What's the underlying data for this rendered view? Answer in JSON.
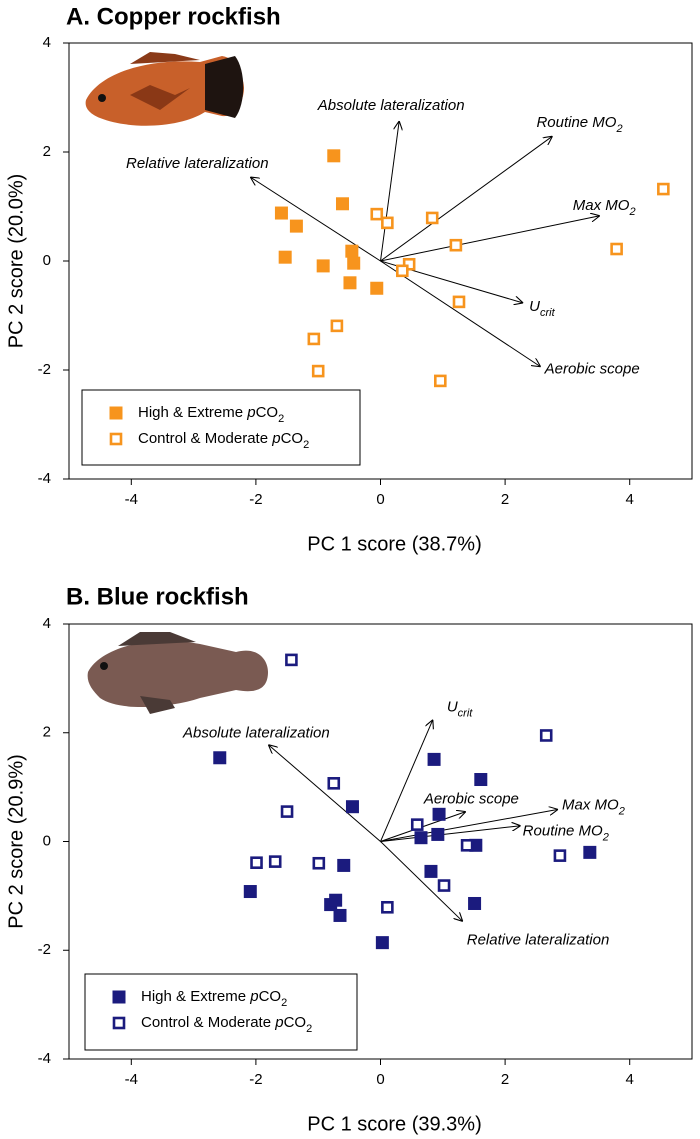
{
  "chart_data": [
    {
      "type": "scatter",
      "title": "A. Copper rockfish",
      "x_label": "PC 1 score (38.7%)",
      "y_label": "PC 2 score (20.0%)",
      "xlim": [
        -5,
        5
      ],
      "ylim": [
        -4,
        4
      ],
      "xticks": [
        -4,
        -2,
        0,
        2,
        4
      ],
      "yticks": [
        -4,
        -2,
        0,
        2,
        4
      ],
      "series": [
        {
          "name_parts": [
            {
              "text": "High & Extreme "
            },
            {
              "text": "p",
              "style": "italic"
            },
            {
              "text": "CO"
            },
            {
              "text": "2",
              "style": "sub"
            }
          ],
          "color": "#f7941d",
          "marker": "filled",
          "x": [
            -0.75,
            -0.61,
            -1.59,
            -1.35,
            -1.53,
            -0.92,
            -0.46,
            -0.43,
            -0.49,
            -0.06
          ],
          "y": [
            1.93,
            1.05,
            0.88,
            0.64,
            0.07,
            -0.09,
            0.18,
            -0.04,
            -0.4,
            -0.5
          ]
        },
        {
          "name_parts": [
            {
              "text": "Control & Moderate "
            },
            {
              "text": "p",
              "style": "italic"
            },
            {
              "text": "CO"
            },
            {
              "text": "2",
              "style": "sub"
            }
          ],
          "color": "#f7941d",
          "marker": "open",
          "x": [
            -0.06,
            0.11,
            0.83,
            1.21,
            0.46,
            0.35,
            1.26,
            4.54,
            3.79,
            0.96,
            -0.7,
            -1.07,
            -1.0
          ],
          "y": [
            0.86,
            0.7,
            0.79,
            0.29,
            -0.06,
            -0.18,
            -0.75,
            1.32,
            0.22,
            -2.2,
            -1.19,
            -1.43,
            -2.02
          ]
        }
      ],
      "loadings": [
        {
          "label": [
            {
              "text": "Absolute lateralization"
            }
          ],
          "x": 0.3,
          "y": 2.57
        },
        {
          "label": [
            {
              "text": "Routine MO"
            },
            {
              "text": "2",
              "style": "sub"
            }
          ],
          "x": 2.76,
          "y": 2.29
        },
        {
          "label": [
            {
              "text": "Relative lateralization"
            }
          ],
          "x": -2.09,
          "y": 1.54
        },
        {
          "label": [
            {
              "text": "Max MO"
            },
            {
              "text": "2",
              "style": "sub"
            }
          ],
          "x": 3.52,
          "y": 0.83
        },
        {
          "label": [
            {
              "text": "U"
            },
            {
              "text": "crit",
              "style": "sub"
            }
          ],
          "x": 2.29,
          "y": -0.77
        },
        {
          "label": [
            {
              "text": "Aerobic scope"
            }
          ],
          "x": 2.57,
          "y": -1.94
        }
      ]
    },
    {
      "type": "scatter",
      "title": "B. Blue rockfish",
      "x_label": "PC 1 score (39.3%)",
      "y_label": "PC 2 score (20.9%)",
      "xlim": [
        -5,
        5
      ],
      "ylim": [
        -4,
        4
      ],
      "xticks": [
        -4,
        -2,
        0,
        2,
        4
      ],
      "yticks": [
        -4,
        -2,
        0,
        2,
        4
      ],
      "series": [
        {
          "name_parts": [
            {
              "text": "High & Extreme "
            },
            {
              "text": "p",
              "style": "italic"
            },
            {
              "text": "CO"
            },
            {
              "text": "2",
              "style": "sub"
            }
          ],
          "color": "#1b1b7e",
          "marker": "filled",
          "x": [
            -2.58,
            0.86,
            1.61,
            -0.45,
            0.94,
            0.92,
            0.65,
            1.53,
            3.36,
            -0.59,
            0.81,
            -2.09,
            -0.8,
            -0.72,
            -0.65,
            1.51,
            0.03
          ],
          "y": [
            1.54,
            1.51,
            1.14,
            0.64,
            0.5,
            0.13,
            0.07,
            -0.07,
            -0.2,
            -0.44,
            -0.55,
            -0.92,
            -1.16,
            -1.08,
            -1.36,
            -1.14,
            -1.86
          ]
        },
        {
          "name_parts": [
            {
              "text": "Control & Moderate "
            },
            {
              "text": "p",
              "style": "italic"
            },
            {
              "text": "CO"
            },
            {
              "text": "2",
              "style": "sub"
            }
          ],
          "color": "#1b1b7e",
          "marker": "open",
          "x": [
            -1.43,
            2.66,
            -0.75,
            -1.5,
            0.59,
            1.39,
            2.88,
            -1.99,
            -1.69,
            -0.99,
            1.02,
            0.11
          ],
          "y": [
            3.34,
            1.95,
            1.07,
            0.55,
            0.31,
            -0.07,
            -0.26,
            -0.39,
            -0.37,
            -0.4,
            -0.81,
            -1.21
          ]
        }
      ],
      "loadings": [
        {
          "label": [
            {
              "text": "U"
            },
            {
              "text": "crit",
              "style": "sub"
            }
          ],
          "x": 0.84,
          "y": 2.24
        },
        {
          "label": [
            {
              "text": "Absolute lateralization"
            }
          ],
          "x": -1.8,
          "y": 1.78
        },
        {
          "label": [
            {
              "text": "Aerobic scope"
            }
          ],
          "x": 1.37,
          "y": 0.55
        },
        {
          "label": [
            {
              "text": "Max MO"
            },
            {
              "text": "2",
              "style": "sub"
            }
          ],
          "x": 2.85,
          "y": 0.59
        },
        {
          "label": [
            {
              "text": "Routine MO"
            },
            {
              "text": "2",
              "style": "sub"
            }
          ],
          "x": 2.25,
          "y": 0.29
        },
        {
          "label": [
            {
              "text": "Relative lateralization"
            }
          ],
          "x": 1.32,
          "y": -1.47
        }
      ]
    }
  ]
}
